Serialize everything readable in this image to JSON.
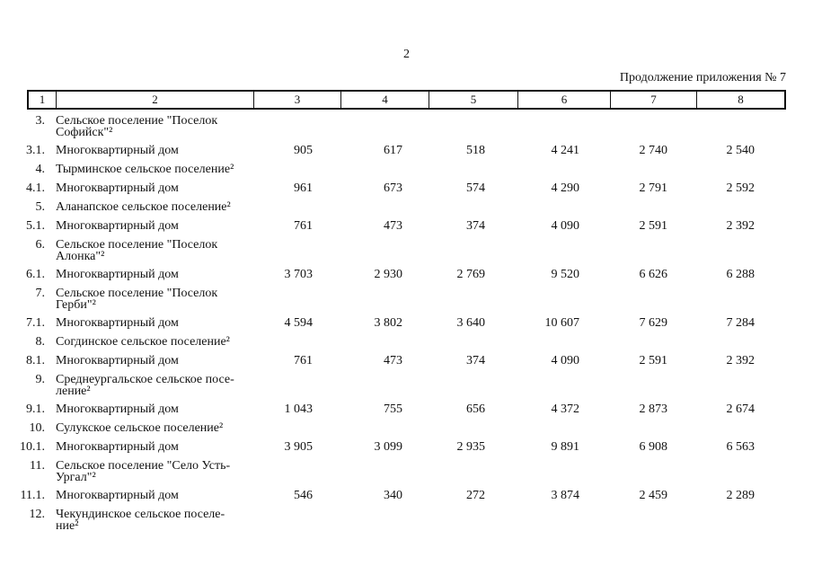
{
  "page": {
    "number": "2",
    "note": "Продолжение приложения № 7"
  },
  "table": {
    "column_headers": [
      "1",
      "2",
      "3",
      "4",
      "5",
      "6",
      "7",
      "8"
    ],
    "rows": [
      {
        "num": "3.",
        "label": "Сельское поселение \"Поселок\nСофийск\"²",
        "values": []
      },
      {
        "num": "3.1.",
        "label": "Многоквартирный дом",
        "values": [
          "905",
          "617",
          "518",
          "4 241",
          "2 740",
          "2 540"
        ]
      },
      {
        "num": "4.",
        "label": "Тырминское сельское поселение²",
        "values": []
      },
      {
        "num": "4.1.",
        "label": "Многоквартирный дом",
        "values": [
          "961",
          "673",
          "574",
          "4 290",
          "2 791",
          "2 592"
        ]
      },
      {
        "num": "5.",
        "label": "Аланапское сельское поселение²",
        "values": []
      },
      {
        "num": "5.1.",
        "label": "Многоквартирный дом",
        "values": [
          "761",
          "473",
          "374",
          "4 090",
          "2 591",
          "2 392"
        ]
      },
      {
        "num": "6.",
        "label": "Сельское поселение \"Поселок\nАлонка\"²",
        "values": []
      },
      {
        "num": "6.1.",
        "label": "Многоквартирный дом",
        "values": [
          "3 703",
          "2 930",
          "2 769",
          "9 520",
          "6 626",
          "6 288"
        ]
      },
      {
        "num": "7.",
        "label": "Сельское поселение \"Поселок\nГерби\"²",
        "values": []
      },
      {
        "num": "7.1.",
        "label": "Многоквартирный дом",
        "values": [
          "4 594",
          "3 802",
          "3 640",
          "10 607",
          "7 629",
          "7 284"
        ]
      },
      {
        "num": "8.",
        "label": "Согдинское сельское поселение²",
        "values": []
      },
      {
        "num": "8.1.",
        "label": "Многоквартирный дом",
        "values": [
          "761",
          "473",
          "374",
          "4 090",
          "2 591",
          "2 392"
        ]
      },
      {
        "num": "9.",
        "label": "Среднеургальское сельское посе-\nление²",
        "values": []
      },
      {
        "num": "9.1.",
        "label": "Многоквартирный дом",
        "values": [
          "1 043",
          "755",
          "656",
          "4 372",
          "2 873",
          "2 674"
        ]
      },
      {
        "num": "10.",
        "label": "Сулукское сельское поселение²",
        "values": []
      },
      {
        "num": "10.1.",
        "label": "Многоквартирный дом",
        "values": [
          "3 905",
          "3 099",
          "2 935",
          "9 891",
          "6 908",
          "6 563"
        ]
      },
      {
        "num": "11.",
        "label": "Сельское поселение \"Село Усть-\nУргал\"²",
        "values": []
      },
      {
        "num": "11.1.",
        "label": "Многоквартирный дом",
        "values": [
          "546",
          "340",
          "272",
          "3 874",
          "2 459",
          "2 289"
        ]
      },
      {
        "num": "12.",
        "label": "Чекундинское сельское поселе-\nние²",
        "values": []
      }
    ]
  }
}
